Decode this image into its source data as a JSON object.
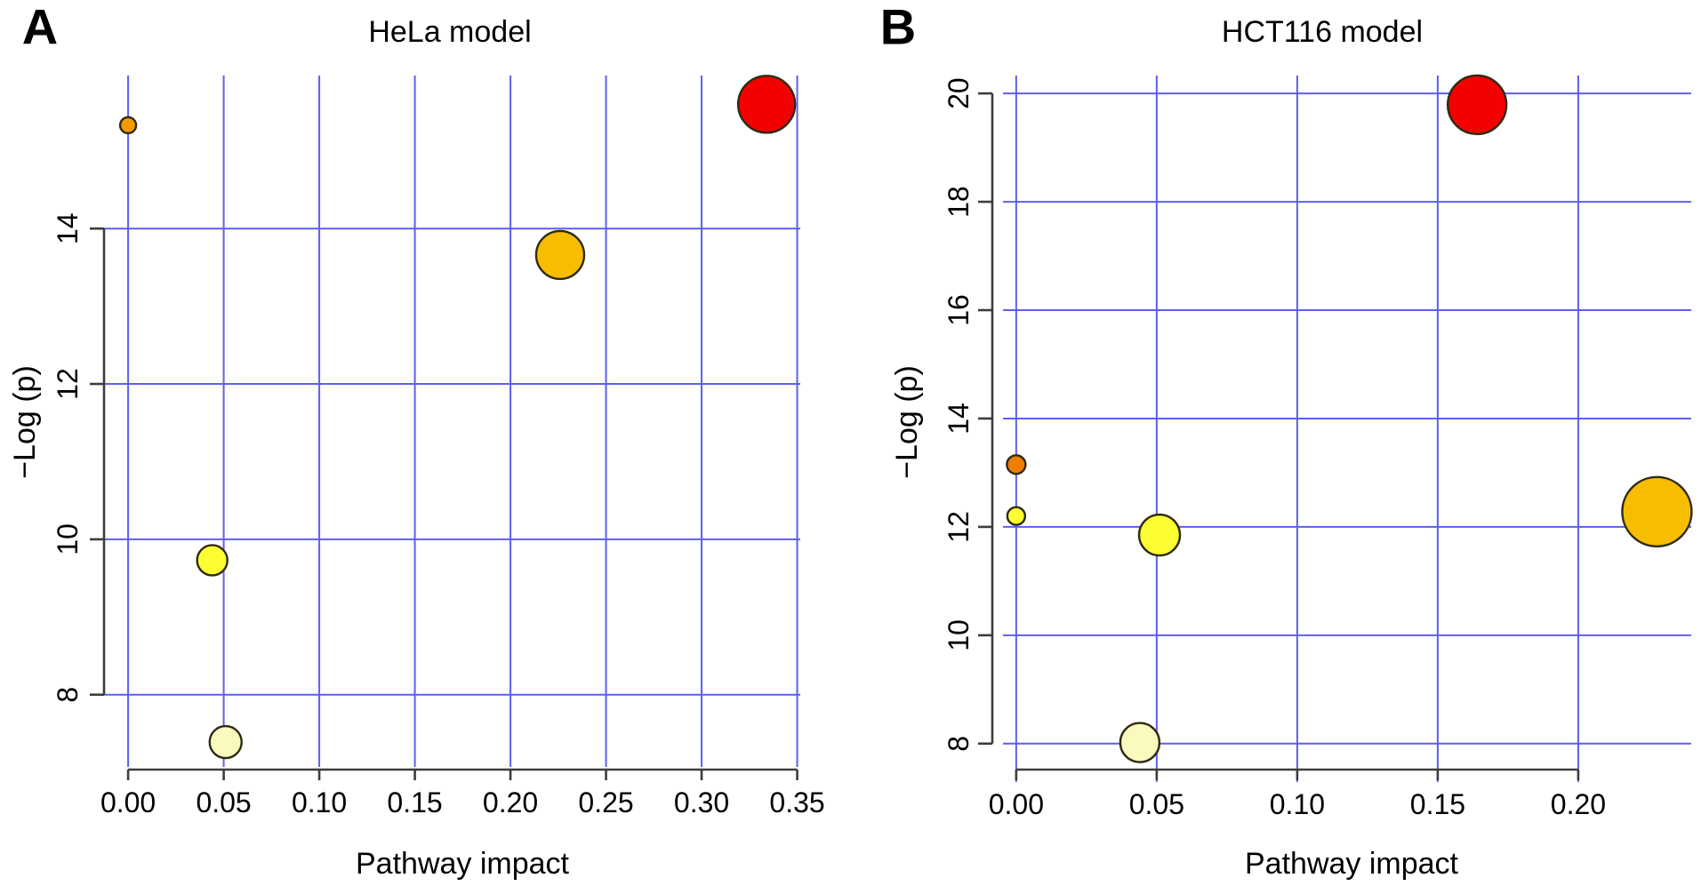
{
  "figure": {
    "background": "#ffffff",
    "grid_color": "#5e5ef2",
    "axis_color": "#3d3d3d",
    "bubble_stroke": "#2e2a14",
    "text_color": "#000000"
  },
  "chart_data": [
    {
      "type": "scatter",
      "panel_letter": "A",
      "title": "HeLa model",
      "xlabel": "Pathway impact",
      "ylabel": "−Log (p)",
      "grid": true,
      "legend": "none",
      "xlim": [
        -0.0126,
        0.3516
      ],
      "ylim": [
        7.07,
        15.97
      ],
      "x_ticks": [
        0,
        0.05,
        0.1,
        0.15,
        0.2,
        0.25,
        0.3,
        0.35
      ],
      "x_tick_labels": [
        "0.00",
        "0.05",
        "0.10",
        "0.15",
        "0.20",
        "0.25",
        "0.30",
        "0.35"
      ],
      "y_ticks": [
        8,
        10,
        12,
        14
      ],
      "y_tick_labels": [
        "8",
        "10",
        "12",
        "14"
      ],
      "points": [
        {
          "x": 0.0,
          "y": 15.33,
          "r": 9,
          "color": "#F59B00"
        },
        {
          "x": 0.334,
          "y": 15.6,
          "r": 32,
          "color": "#F40000"
        },
        {
          "x": 0.226,
          "y": 13.66,
          "r": 27,
          "color": "#F7BD00"
        },
        {
          "x": 0.044,
          "y": 9.73,
          "r": 17,
          "color": "#FDFD33"
        },
        {
          "x": 0.051,
          "y": 7.39,
          "r": 18,
          "color": "#FAFABE"
        }
      ]
    },
    {
      "type": "scatter",
      "panel_letter": "B",
      "title": "HCT116 model",
      "xlabel": "Pathway impact",
      "ylabel": "−Log (p)",
      "grid": true,
      "legend": "none",
      "xlim": [
        -0.0047,
        0.2402
      ],
      "ylim": [
        7.57,
        20.33
      ],
      "x_ticks": [
        0,
        0.05,
        0.1,
        0.15,
        0.2
      ],
      "x_tick_labels": [
        "0.00",
        "0.05",
        "0.10",
        "0.15",
        "0.20"
      ],
      "y_ticks": [
        8,
        10,
        12,
        14,
        16,
        18,
        20
      ],
      "y_tick_labels": [
        "8",
        "10",
        "12",
        "14",
        "16",
        "18",
        "20"
      ],
      "points": [
        {
          "x": 0.164,
          "y": 19.79,
          "r": 33,
          "color": "#F40000"
        },
        {
          "x": 0.0,
          "y": 13.15,
          "r": 10.5,
          "color": "#F07D00"
        },
        {
          "x": 0.0,
          "y": 12.2,
          "r": 10,
          "color": "#FDFD33"
        },
        {
          "x": 0.051,
          "y": 11.85,
          "r": 23,
          "color": "#FDFD33"
        },
        {
          "x": 0.228,
          "y": 12.28,
          "r": 39,
          "color": "#F7BD00"
        },
        {
          "x": 0.044,
          "y": 8.02,
          "r": 22,
          "color": "#FAFABE"
        }
      ]
    }
  ]
}
